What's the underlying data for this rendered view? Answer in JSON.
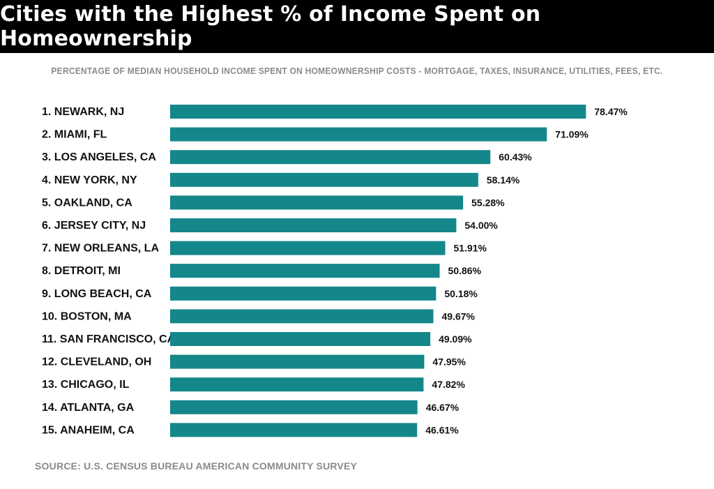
{
  "title": "Cities with the Highest % of Income Spent on Homeownership",
  "subtitle": "PERCENTAGE OF MEDIAN HOUSEHOLD INCOME SPENT ON HOMEOWNERSHIP COSTS - MORTGAGE, TAXES, INSURANCE, UTILITIES, FEES, ETC.",
  "source": "SOURCE: U.S. CENSUS BUREAU AMERICAN COMMUNITY SURVEY",
  "colors": {
    "bar": "#13878a",
    "header_bg": "#000000",
    "muted_text": "#8a8a8a"
  },
  "chart_data": {
    "type": "bar",
    "orientation": "horizontal",
    "categories": [
      "1. NEWARK, NJ",
      "2. MIAMI, FL",
      "3. LOS ANGELES, CA",
      "4. NEW YORK, NY",
      "5. OAKLAND, CA",
      "6. JERSEY CITY, NJ",
      "7. NEW ORLEANS, LA",
      "8. DETROIT, MI",
      "9. LONG BEACH, CA",
      "10. BOSTON, MA",
      "11. SAN FRANCISCO, CA",
      "12. CLEVELAND, OH",
      "13. CHICAGO, IL",
      "14. ATLANTA, GA",
      "15. ANAHEIM, CA"
    ],
    "values": [
      78.47,
      71.09,
      60.43,
      58.14,
      55.28,
      54.0,
      51.91,
      50.86,
      50.18,
      49.67,
      49.09,
      47.95,
      47.82,
      46.67,
      46.61
    ],
    "value_labels": [
      "78.47%",
      "71.09%",
      "60.43%",
      "58.14%",
      "55.28%",
      "54.00%",
      "51.91%",
      "50.86%",
      "50.18%",
      "49.67%",
      "49.09%",
      "47.95%",
      "47.82%",
      "46.67%",
      "46.61%"
    ],
    "grid": false,
    "legend": "none"
  }
}
